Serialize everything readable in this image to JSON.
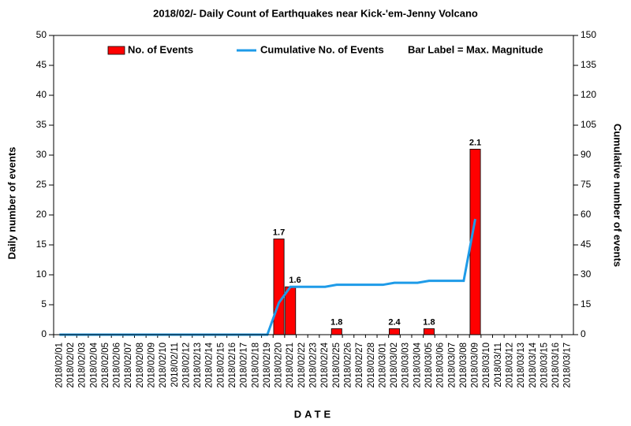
{
  "chart_data": {
    "type": "bar_line",
    "title": "2018/02/- Daily Count of Earthquakes near Kick-'em-Jenny Volcano",
    "xlabel": "DATE",
    "ylabel": "Daily number of events",
    "y2label": "Cumulative number of events",
    "annotation": "Bar Label = Max. Magnitude",
    "categories": [
      "2018/02/01",
      "2018/02/02",
      "2018/02/03",
      "2018/02/04",
      "2018/02/05",
      "2018/02/06",
      "2018/02/07",
      "2018/02/08",
      "2018/02/09",
      "2018/02/10",
      "2018/02/11",
      "2018/02/12",
      "2018/02/13",
      "2018/02/14",
      "2018/02/15",
      "2018/02/16",
      "2018/02/17",
      "2018/02/18",
      "2018/02/19",
      "2018/02/20",
      "2018/02/21",
      "2018/02/22",
      "2018/02/23",
      "2018/02/24",
      "2018/02/25",
      "2018/02/26",
      "2018/02/27",
      "2018/02/28",
      "2018/03/01",
      "2018/03/02",
      "2018/03/03",
      "2018/03/04",
      "2018/03/05",
      "2018/03/06",
      "2018/03/07",
      "2018/03/08",
      "2018/03/09",
      "2018/03/10",
      "2018/03/11",
      "2018/03/12",
      "2018/03/13",
      "2018/03/14",
      "2018/03/15",
      "2018/03/16",
      "2018/03/17"
    ],
    "series": [
      {
        "name": "No. of Events",
        "type": "bar",
        "color": "#ff0000",
        "values": [
          0,
          0,
          0,
          0,
          0,
          0,
          0,
          0,
          0,
          0,
          0,
          0,
          0,
          0,
          0,
          0,
          0,
          0,
          0,
          16,
          8,
          0,
          0,
          0,
          1,
          0,
          0,
          0,
          0,
          1,
          0,
          0,
          1,
          0,
          0,
          0,
          31,
          0,
          0,
          0,
          0,
          0,
          0,
          0,
          0
        ],
        "bar_labels": [
          null,
          null,
          null,
          null,
          null,
          null,
          null,
          null,
          null,
          null,
          null,
          null,
          null,
          null,
          null,
          null,
          null,
          null,
          null,
          "1.7",
          "1.6",
          null,
          null,
          null,
          "1.8",
          null,
          null,
          null,
          null,
          "2.4",
          null,
          null,
          "1.8",
          null,
          null,
          null,
          "2.1",
          null,
          null,
          null,
          null,
          null,
          null,
          null,
          null
        ]
      },
      {
        "name": "Cumulative No. of Events",
        "type": "line",
        "axis": "y2",
        "color": "#1e9be8",
        "values": [
          0,
          0,
          0,
          0,
          0,
          0,
          0,
          0,
          0,
          0,
          0,
          0,
          0,
          0,
          0,
          0,
          0,
          0,
          0,
          16,
          24,
          24,
          24,
          24,
          25,
          25,
          25,
          25,
          25,
          26,
          26,
          26,
          27,
          27,
          27,
          27,
          58,
          null,
          null,
          null,
          null,
          null,
          null,
          null,
          null
        ]
      }
    ],
    "ylim": [
      0,
      50
    ],
    "yticks": [
      0,
      5,
      10,
      15,
      20,
      25,
      30,
      35,
      40,
      45,
      50
    ],
    "y2lim": [
      0,
      150
    ],
    "y2ticks": [
      0,
      15,
      30,
      45,
      60,
      75,
      90,
      105,
      120,
      135,
      150
    ]
  }
}
